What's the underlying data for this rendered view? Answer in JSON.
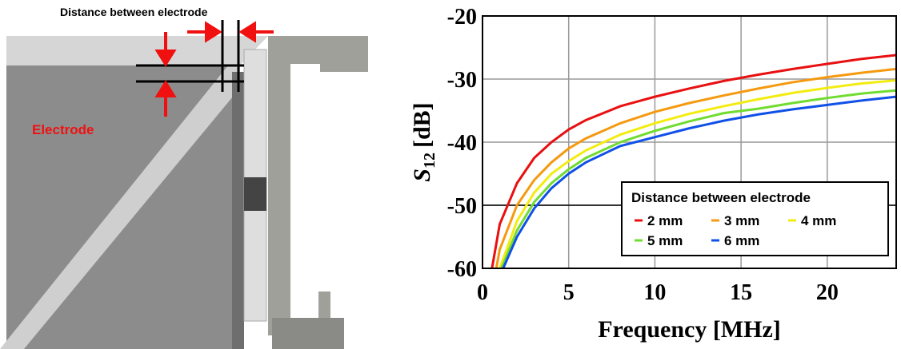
{
  "diagram": {
    "distance_label": "Distance between electrode",
    "electrode_label": "Electrode"
  },
  "chart_data": {
    "type": "line",
    "x_label": "Frequency [MHz]",
    "y_label": "S",
    "y_label_subscript": "12",
    "y_label_unit": "[dB]",
    "xlim": [
      0,
      24
    ],
    "ylim": [
      -60,
      -20
    ],
    "xticks": [
      0,
      5,
      10,
      15,
      20
    ],
    "yticks": [
      -20,
      -30,
      -40,
      -50,
      -60
    ],
    "grid": true,
    "reference_line": -50,
    "legend_title": "Distance between electrode",
    "legend_position": "lower right",
    "series": [
      {
        "name": "2 mm",
        "color": "#e81010",
        "x": [
          0.55,
          1,
          2,
          3,
          4,
          5,
          6,
          8,
          10,
          12,
          14,
          16,
          18,
          20,
          22,
          24
        ],
        "values": [
          -60,
          -53,
          -46.5,
          -42.5,
          -40,
          -38,
          -36.5,
          -34.3,
          -32.8,
          -31.5,
          -30.3,
          -29.3,
          -28.4,
          -27.6,
          -26.8,
          -26.2
        ]
      },
      {
        "name": "3 mm",
        "color": "#f59a10",
        "x": [
          0.8,
          1,
          2,
          3,
          4,
          5,
          6,
          8,
          10,
          12,
          14,
          16,
          18,
          20,
          22,
          24
        ],
        "values": [
          -60,
          -57,
          -50,
          -46,
          -43.2,
          -41,
          -39.4,
          -37,
          -35.2,
          -33.8,
          -32.6,
          -31.5,
          -30.5,
          -29.7,
          -29,
          -28.4
        ]
      },
      {
        "name": "4 mm",
        "color": "#f2ec10",
        "x": [
          1,
          2,
          3,
          4,
          5,
          6,
          8,
          10,
          12,
          14,
          16,
          18,
          20,
          22,
          24
        ],
        "values": [
          -60,
          -52.5,
          -48,
          -45,
          -43,
          -41.3,
          -38.8,
          -37,
          -35.5,
          -34.3,
          -33.2,
          -32.2,
          -31.4,
          -30.7,
          -30.2
        ]
      },
      {
        "name": "5 mm",
        "color": "#70dc30",
        "x": [
          1.1,
          2,
          3,
          4,
          5,
          6,
          8,
          10,
          12,
          14,
          16,
          18,
          20,
          22,
          24
        ],
        "values": [
          -60,
          -54,
          -49.5,
          -46.5,
          -44.3,
          -42.5,
          -40,
          -38.2,
          -36.7,
          -35.4,
          -34.7,
          -33.8,
          -33,
          -32.3,
          -31.8
        ]
      },
      {
        "name": "6 mm",
        "color": "#1050e8",
        "x": [
          1.2,
          2,
          3,
          4,
          5,
          6,
          8,
          10,
          12,
          14,
          16,
          18,
          20,
          22,
          24
        ],
        "values": [
          -60,
          -55,
          -50.5,
          -47.3,
          -45,
          -43.2,
          -40.6,
          -39.2,
          -37.8,
          -36.6,
          -35.6,
          -34.8,
          -34.1,
          -33.4,
          -32.8
        ]
      }
    ]
  }
}
